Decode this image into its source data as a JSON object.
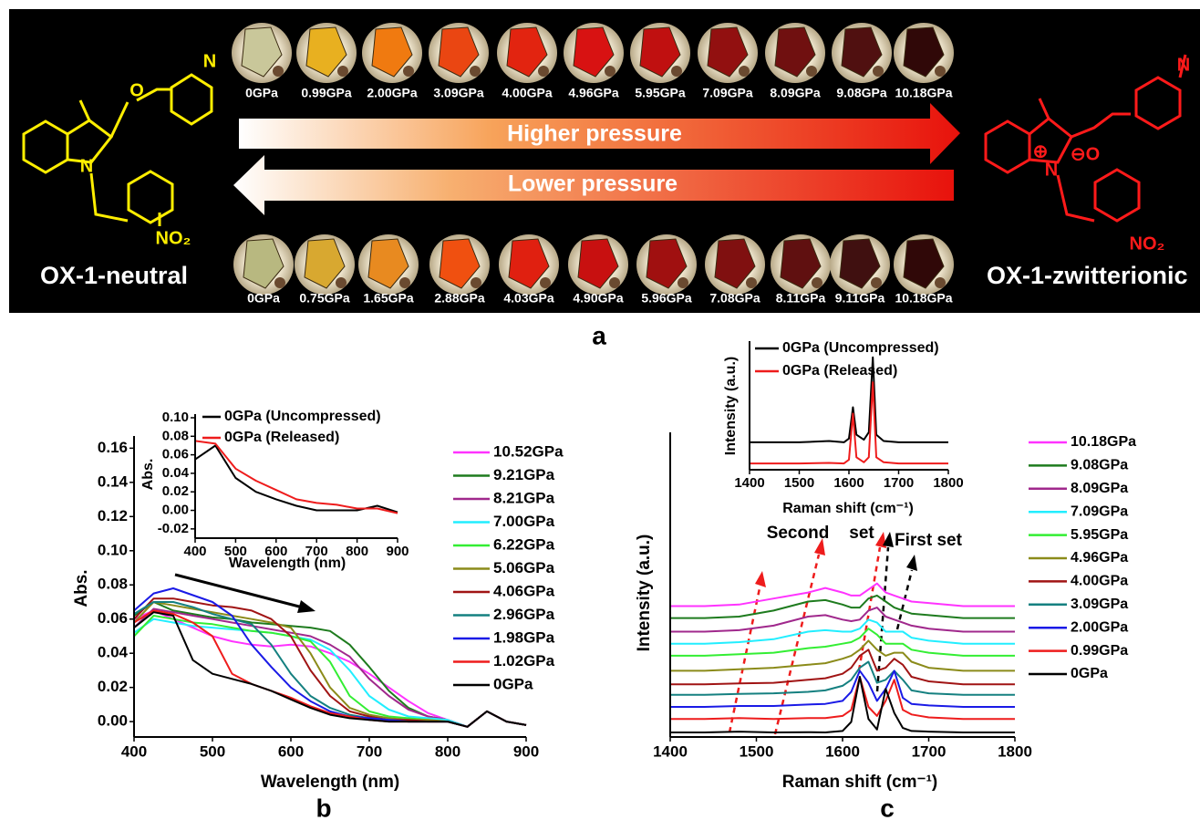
{
  "panel_a": {
    "label": "a",
    "top_row": [
      {
        "label": "0GPa",
        "color": "#c9c79a"
      },
      {
        "label": "0.99GPa",
        "color": "#e8b020"
      },
      {
        "label": "2.00GPa",
        "color": "#f07a10"
      },
      {
        "label": "3.09GPa",
        "color": "#ea4612"
      },
      {
        "label": "4.00GPa",
        "color": "#e22410"
      },
      {
        "label": "4.96GPa",
        "color": "#d81212"
      },
      {
        "label": "5.95GPa",
        "color": "#c01010"
      },
      {
        "label": "7.09GPa",
        "color": "#921010"
      },
      {
        "label": "8.09GPa",
        "color": "#701010"
      },
      {
        "label": "9.08GPa",
        "color": "#501010"
      },
      {
        "label": "10.18GPa",
        "color": "#300808"
      }
    ],
    "bottom_row": [
      {
        "label": "0GPa",
        "color": "#b8b880"
      },
      {
        "label": "0.75GPa",
        "color": "#d8a830"
      },
      {
        "label": "1.65GPa",
        "color": "#e88a20"
      },
      {
        "label": "2.88GPa",
        "color": "#f05010"
      },
      {
        "label": "4.03GPa",
        "color": "#e02010"
      },
      {
        "label": "4.90GPa",
        "color": "#c81010"
      },
      {
        "label": "5.96GPa",
        "color": "#a01010"
      },
      {
        "label": "7.08GPa",
        "color": "#801010"
      },
      {
        "label": "8.11GPa",
        "color": "#601010"
      },
      {
        "label": "9.11GPa",
        "color": "#401010"
      },
      {
        "label": "10.18GPa",
        "color": "#300808"
      }
    ],
    "arrow_up": "Higher pressure",
    "arrow_down": "Lower pressure",
    "left_name": "OX-1-neutral",
    "right_name": "OX-1-zwitterionic",
    "left_atoms": [
      "N",
      "O",
      "N",
      "NO₂"
    ],
    "right_atoms": [
      "N",
      "⊕",
      "⊖O",
      "N",
      "NO₂"
    ]
  },
  "chart_data": [
    {
      "type": "line",
      "panel_label": "b",
      "xlabel": "Wavelength (nm)",
      "ylabel": "Abs.",
      "x": [
        400,
        425,
        450,
        475,
        500,
        525,
        550,
        575,
        600,
        625,
        650,
        675,
        700,
        725,
        750,
        775,
        800,
        825,
        850,
        875,
        900
      ],
      "xlim": [
        400,
        900
      ],
      "xticks": [
        400,
        500,
        600,
        700,
        800,
        900
      ],
      "ylim": [
        -0.009,
        0.165
      ],
      "yticks": [
        {
          "value": 0,
          "label": "0.00"
        },
        0.02,
        0.04,
        0.06,
        0.08,
        {
          "value": 0.1,
          "label": "0.10"
        },
        0.12,
        0.14,
        0.16
      ],
      "series": [
        {
          "name": "10.52GPa",
          "color": "#ff33ff",
          "values": [
            0.06,
            0.065,
            0.06,
            0.055,
            0.05,
            0.047,
            0.045,
            0.044,
            0.045,
            0.044,
            0.04,
            0.035,
            0.028,
            0.02,
            0.012,
            0.005,
            0.001,
            -0.003,
            0.006,
            0.0,
            -0.002
          ]
        },
        {
          "name": "9.21GPa",
          "color": "#1e7b1e",
          "values": [
            0.062,
            0.07,
            0.065,
            0.063,
            0.061,
            0.06,
            0.058,
            0.057,
            0.056,
            0.055,
            0.053,
            0.045,
            0.032,
            0.018,
            0.008,
            0.003,
            0.001,
            -0.003,
            0.006,
            0.0,
            -0.002
          ]
        },
        {
          "name": "8.21GPa",
          "color": "#a0288c",
          "values": [
            0.055,
            0.066,
            0.064,
            0.062,
            0.06,
            0.058,
            0.056,
            0.054,
            0.052,
            0.05,
            0.045,
            0.038,
            0.025,
            0.015,
            0.007,
            0.003,
            0.001,
            -0.003,
            0.006,
            0.0,
            -0.002
          ]
        },
        {
          "name": "7.00GPa",
          "color": "#22eeff",
          "values": [
            0.052,
            0.06,
            0.058,
            0.056,
            0.055,
            0.054,
            0.053,
            0.052,
            0.05,
            0.048,
            0.042,
            0.03,
            0.015,
            0.007,
            0.003,
            0.002,
            0.001,
            -0.003,
            0.006,
            0.0,
            -0.002
          ]
        },
        {
          "name": "6.22GPa",
          "color": "#33ee33",
          "values": [
            0.05,
            0.062,
            0.06,
            0.058,
            0.057,
            0.055,
            0.053,
            0.052,
            0.05,
            0.047,
            0.035,
            0.015,
            0.006,
            0.003,
            0.002,
            0.001,
            0.0,
            -0.003,
            0.006,
            0.0,
            -0.002
          ]
        },
        {
          "name": "5.06GPa",
          "color": "#8b8b1a",
          "values": [
            0.058,
            0.07,
            0.068,
            0.066,
            0.064,
            0.062,
            0.06,
            0.058,
            0.055,
            0.04,
            0.02,
            0.008,
            0.004,
            0.002,
            0.001,
            0.001,
            0.0,
            -0.003,
            0.006,
            0.0,
            -0.002
          ]
        },
        {
          "name": "4.06GPa",
          "color": "#a01414",
          "values": [
            0.06,
            0.072,
            0.072,
            0.07,
            0.068,
            0.067,
            0.065,
            0.06,
            0.05,
            0.03,
            0.015,
            0.006,
            0.003,
            0.001,
            0.001,
            0.0,
            0.0,
            -0.003,
            0.006,
            0.0,
            -0.002
          ]
        },
        {
          "name": "2.96GPa",
          "color": "#158080",
          "values": [
            0.063,
            0.07,
            0.07,
            0.067,
            0.063,
            0.06,
            0.057,
            0.045,
            0.028,
            0.015,
            0.008,
            0.004,
            0.002,
            0.001,
            0.0,
            0.0,
            0.0,
            -0.003,
            0.006,
            0.0,
            -0.002
          ]
        },
        {
          "name": "1.98GPa",
          "color": "#1a1ae6",
          "values": [
            0.065,
            0.075,
            0.078,
            0.074,
            0.07,
            0.062,
            0.045,
            0.032,
            0.02,
            0.012,
            0.006,
            0.003,
            0.002,
            0.001,
            0.0,
            0.0,
            0.0,
            -0.003,
            0.006,
            0.0,
            -0.002
          ]
        },
        {
          "name": "1.02GPa",
          "color": "#ee1c1c",
          "values": [
            0.058,
            0.065,
            0.063,
            0.058,
            0.05,
            0.028,
            0.022,
            0.018,
            0.014,
            0.009,
            0.005,
            0.003,
            0.001,
            0.0,
            0.0,
            0.0,
            0.0,
            -0.003,
            0.006,
            0.0,
            -0.002
          ]
        },
        {
          "name": "0GPa",
          "color": "#000000",
          "values": [
            0.055,
            0.064,
            0.062,
            0.036,
            0.028,
            0.025,
            0.022,
            0.018,
            0.013,
            0.008,
            0.004,
            0.002,
            0.001,
            0.0,
            0.0,
            0.0,
            0.0,
            -0.003,
            0.006,
            0.0,
            -0.002
          ]
        }
      ]
    },
    {
      "type": "line",
      "xlabel": "Wavelength (nm)",
      "ylabel": "Abs.",
      "x": [
        400,
        450,
        500,
        550,
        600,
        650,
        700,
        750,
        800,
        850,
        900
      ],
      "xlim": [
        400,
        900
      ],
      "xticks": [
        400,
        500,
        600,
        700,
        800,
        900
      ],
      "ylim": [
        -0.03,
        0.1
      ],
      "yticks": [
        -0.02,
        {
          "value": 0,
          "label": "0.00"
        },
        0.02,
        0.04,
        0.06,
        0.08,
        {
          "value": 0.1,
          "label": "0.10"
        }
      ],
      "series": [
        {
          "name": "0GPa (Uncompressed)",
          "color": "#000000",
          "values": [
            0.055,
            0.07,
            0.035,
            0.02,
            0.012,
            0.005,
            0.0,
            0.0,
            0.0,
            0.005,
            -0.002
          ]
        },
        {
          "name": "0GPa (Released)",
          "color": "#ee1c1c",
          "values": [
            0.075,
            0.072,
            0.045,
            0.032,
            0.022,
            0.012,
            0.008,
            0.006,
            0.002,
            0.002,
            -0.003
          ]
        }
      ]
    },
    {
      "type": "line",
      "panel_label": "c",
      "xlabel": "Raman shift (cm⁻¹)",
      "ylabel": "Intensity (a.u.)",
      "annotations": [
        "Second",
        "set",
        "First set"
      ],
      "x": [
        1400,
        1440,
        1480,
        1520,
        1560,
        1580,
        1600,
        1610,
        1620,
        1630,
        1640,
        1650,
        1660,
        1670,
        1680,
        1700,
        1740,
        1780,
        1800
      ],
      "xlim": [
        1400,
        1800
      ],
      "xticks": [
        1400,
        1500,
        1600,
        1700,
        1800
      ],
      "ylim": [
        0,
        100
      ],
      "series": [
        {
          "name": "10.18GPa",
          "color": "#ff33ff",
          "values": [
            43.5,
            43.5,
            44,
            46,
            48,
            49.5,
            48,
            47,
            47,
            49,
            51,
            48,
            47,
            46,
            45,
            44.5,
            43.5,
            43.5,
            43.5
          ]
        },
        {
          "name": "9.08GPa",
          "color": "#1e7b1e",
          "values": [
            39.5,
            39.5,
            40,
            42,
            45,
            45.5,
            44,
            43,
            43,
            46,
            47,
            45,
            43,
            42,
            41,
            40.5,
            39.5,
            39.5,
            39.5
          ]
        },
        {
          "name": "8.09GPa",
          "color": "#a0288c",
          "values": [
            35,
            35,
            35.5,
            37,
            40,
            40.5,
            39,
            38.5,
            39,
            42,
            43,
            40,
            39,
            38,
            37,
            36,
            35,
            35,
            35
          ]
        },
        {
          "name": "7.09GPa",
          "color": "#22eeff",
          "values": [
            31,
            31,
            31.5,
            32.5,
            35,
            35.5,
            35,
            35,
            36,
            39,
            38,
            35,
            35,
            35,
            33,
            32,
            31,
            31,
            31
          ]
        },
        {
          "name": "5.95GPa",
          "color": "#33ee33",
          "values": [
            27,
            27,
            27.5,
            28,
            29.5,
            30,
            31,
            31.5,
            33,
            36,
            34,
            31,
            31,
            31,
            29,
            28,
            27,
            27,
            27
          ]
        },
        {
          "name": "4.96GPa",
          "color": "#8b8b1a",
          "values": [
            22,
            22,
            22.5,
            23,
            24,
            24.5,
            26,
            27,
            29,
            32,
            29,
            27,
            28,
            28,
            25,
            23,
            22,
            22,
            22
          ]
        },
        {
          "name": "4.00GPa",
          "color": "#a01414",
          "values": [
            17.5,
            17.5,
            17.8,
            18,
            19,
            19.5,
            21,
            23,
            27,
            29,
            22,
            23,
            26,
            24,
            20,
            18.5,
            17.5,
            17.5,
            17.5
          ]
        },
        {
          "name": "3.09GPa",
          "color": "#158080",
          "values": [
            14,
            14,
            14.3,
            14.5,
            15,
            15.5,
            17,
            19,
            23,
            25,
            18,
            19,
            22,
            19,
            15.5,
            14.5,
            14,
            14,
            14
          ]
        },
        {
          "name": "2.00GPa",
          "color": "#1a1ae6",
          "values": [
            10,
            10,
            10.3,
            10.3,
            10.8,
            11,
            12,
            15,
            22,
            18,
            12,
            16,
            22,
            13,
            11,
            10.5,
            10,
            10,
            10
          ]
        },
        {
          "name": "0.99GPa",
          "color": "#ee1c1c",
          "values": [
            6,
            6,
            6.3,
            6,
            6.3,
            6.3,
            7,
            9,
            20,
            10,
            7,
            12,
            19,
            9,
            7.5,
            6.5,
            6,
            6,
            6
          ]
        },
        {
          "name": "0GPa",
          "color": "#000000",
          "values": [
            1.5,
            1.5,
            1.8,
            1.5,
            1.6,
            1.5,
            2,
            5,
            20,
            6,
            2.5,
            16,
            8,
            3,
            2,
            1.8,
            1.5,
            1.5,
            1.5
          ]
        }
      ]
    },
    {
      "type": "line",
      "xlabel": "Raman shift (cm⁻¹)",
      "ylabel": "Intensity (a.u.)",
      "x": [
        1400,
        1500,
        1560,
        1590,
        1600,
        1608,
        1615,
        1630,
        1640,
        1648,
        1655,
        1670,
        1700,
        1800
      ],
      "xlim": [
        1400,
        1800
      ],
      "xticks": [
        1400,
        1500,
        1600,
        1700,
        1800
      ],
      "ylim": [
        0,
        100
      ],
      "series": [
        {
          "name": "0GPa (Uncompressed)",
          "color": "#000000",
          "values": [
            22,
            22,
            23,
            22,
            25,
            50,
            28,
            24,
            30,
            90,
            28,
            23,
            22,
            22
          ]
        },
        {
          "name": "0GPa (Released)",
          "color": "#ee1c1c",
          "values": [
            5,
            5,
            5.5,
            5,
            8,
            45,
            10,
            6,
            10,
            70,
            10,
            6,
            5,
            5
          ]
        }
      ]
    }
  ]
}
